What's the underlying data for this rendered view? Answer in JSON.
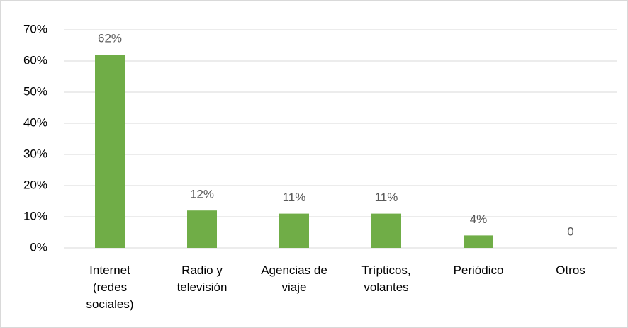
{
  "chart_data": {
    "type": "bar",
    "categories": [
      "Internet\n(redes\nsociales)",
      "Radio y\ntelevisión",
      "Agencias de\nviaje",
      "Trípticos,\nvolantes",
      "Periódico",
      "Otros"
    ],
    "values": [
      62,
      12,
      11,
      11,
      4,
      0
    ],
    "value_labels": [
      "62%",
      "12%",
      "11%",
      "11%",
      "4%",
      "0"
    ],
    "color": "#70ad47",
    "ylim": [
      0,
      70
    ],
    "yticks": [
      {
        "value": 0,
        "label": "0%"
      },
      {
        "value": 10,
        "label": "10%"
      },
      {
        "value": 20,
        "label": "20%"
      },
      {
        "value": 30,
        "label": "30%"
      },
      {
        "value": 40,
        "label": "40%"
      },
      {
        "value": 50,
        "label": "50%"
      },
      {
        "value": 60,
        "label": "60%"
      },
      {
        "value": 70,
        "label": "70%"
      }
    ],
    "grid": true
  }
}
